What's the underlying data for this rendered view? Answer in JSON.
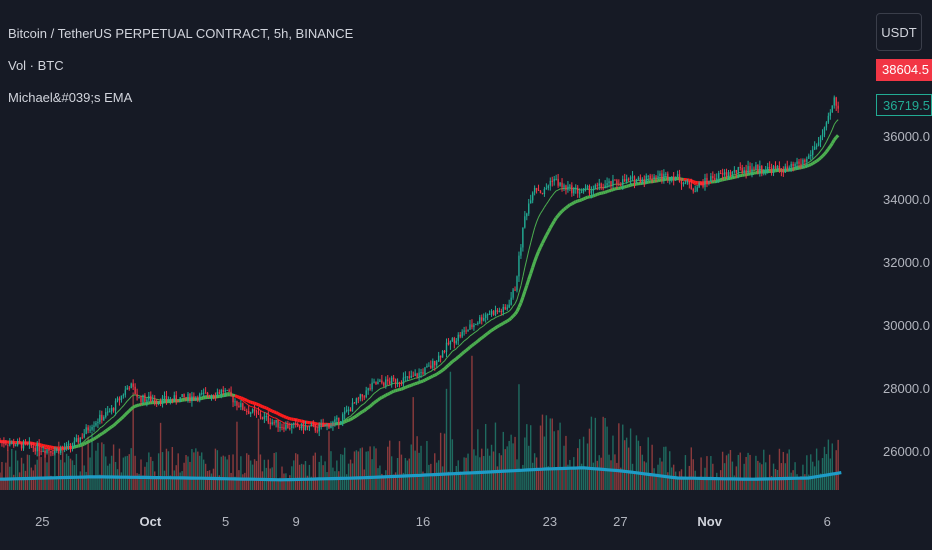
{
  "legend": {
    "title": "Bitcoin / TetherUS PERPETUAL CONTRACT, 5h, BINANCE",
    "volume": "Vol · BTC",
    "ema": "Michael&#039;s EMA"
  },
  "currency_button": "USDT",
  "price_tags": {
    "high": "38604.5",
    "current": "36719.5"
  },
  "colors": {
    "up": "#22ab94",
    "down": "#f23645",
    "ema_bull": "#4caf50",
    "ema_bear": "#ff1d1d",
    "vol_ma": "#1e9cc6",
    "background": "#161a25"
  },
  "chart_data": {
    "type": "candlestick",
    "title": "Bitcoin / TetherUS PERPETUAL CONTRACT, 5h, BINANCE",
    "y_ticks": [
      "36000.0",
      "34000.0",
      "32000.0",
      "30000.0",
      "28000.0",
      "26000.0"
    ],
    "x_ticks": [
      {
        "label": "25",
        "bold": false
      },
      {
        "label": "Oct",
        "bold": true
      },
      {
        "label": "5",
        "bold": false
      },
      {
        "label": "9",
        "bold": false
      },
      {
        "label": "16",
        "bold": false
      },
      {
        "label": "23",
        "bold": false
      },
      {
        "label": "27",
        "bold": false
      },
      {
        "label": "Nov",
        "bold": true
      },
      {
        "label": "6",
        "bold": false
      }
    ],
    "ylim": [
      24800,
      38900
    ],
    "price_path": [
      {
        "day": 0,
        "price": 26350
      },
      {
        "day": 6,
        "price": 26050
      },
      {
        "day": 8,
        "price": 26200
      },
      {
        "day": 10,
        "price": 26900
      },
      {
        "day": 12,
        "price": 27300
      },
      {
        "day": 14,
        "price": 28150
      },
      {
        "day": 15,
        "price": 27700
      },
      {
        "day": 18,
        "price": 27650
      },
      {
        "day": 22,
        "price": 27800
      },
      {
        "day": 24,
        "price": 27950
      },
      {
        "day": 26,
        "price": 27400
      },
      {
        "day": 30,
        "price": 26850
      },
      {
        "day": 34,
        "price": 26750
      },
      {
        "day": 36,
        "price": 26950
      },
      {
        "day": 38,
        "price": 27550
      },
      {
        "day": 40,
        "price": 28150
      },
      {
        "day": 44,
        "price": 28350
      },
      {
        "day": 46,
        "price": 28700
      },
      {
        "day": 48,
        "price": 29450
      },
      {
        "day": 50,
        "price": 29900
      },
      {
        "day": 52,
        "price": 30400
      },
      {
        "day": 54,
        "price": 30500
      },
      {
        "day": 55,
        "price": 31200
      },
      {
        "day": 56,
        "price": 33400
      },
      {
        "day": 57,
        "price": 34450
      },
      {
        "day": 58,
        "price": 34200
      },
      {
        "day": 59,
        "price": 34700
      },
      {
        "day": 60,
        "price": 34400
      },
      {
        "day": 62,
        "price": 34250
      },
      {
        "day": 66,
        "price": 34550
      },
      {
        "day": 70,
        "price": 34750
      },
      {
        "day": 72,
        "price": 34750
      },
      {
        "day": 74,
        "price": 34350
      },
      {
        "day": 76,
        "price": 34700
      },
      {
        "day": 80,
        "price": 35000
      },
      {
        "day": 84,
        "price": 34950
      },
      {
        "day": 86,
        "price": 35250
      },
      {
        "day": 88,
        "price": 36200
      },
      {
        "day": 89,
        "price": 37200
      },
      {
        "day": 89.5,
        "price": 36700
      }
    ],
    "volume_ma_path": [
      {
        "day": 0,
        "value": 0.18
      },
      {
        "day": 10,
        "value": 0.22
      },
      {
        "day": 20,
        "value": 0.2
      },
      {
        "day": 30,
        "value": 0.17
      },
      {
        "day": 38,
        "value": 0.2
      },
      {
        "day": 44,
        "value": 0.24
      },
      {
        "day": 52,
        "value": 0.3
      },
      {
        "day": 58,
        "value": 0.35
      },
      {
        "day": 62,
        "value": 0.37
      },
      {
        "day": 66,
        "value": 0.32
      },
      {
        "day": 72,
        "value": 0.2
      },
      {
        "day": 80,
        "value": 0.18
      },
      {
        "day": 86,
        "value": 0.2
      },
      {
        "day": 89.5,
        "value": 0.29
      }
    ]
  }
}
